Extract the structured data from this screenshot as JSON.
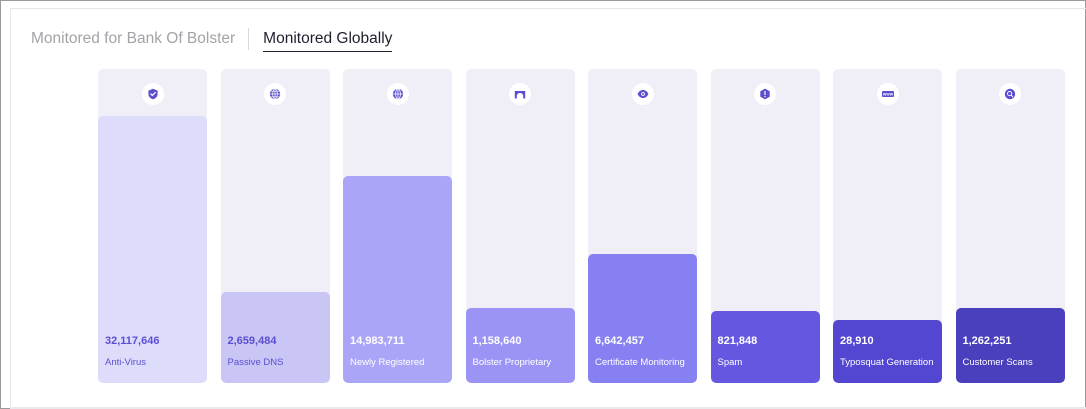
{
  "tabs": [
    {
      "label": "Monitored for Bank Of Bolster",
      "active": false
    },
    {
      "label": "Monitored Globally",
      "active": true
    }
  ],
  "chart_data": {
    "type": "bar",
    "title": "",
    "xlabel": "",
    "ylabel": "",
    "categories": [
      "Anti-Virus",
      "Passive DNS",
      "Newly Registered",
      "Bolster Proprietary",
      "Certificate Monitoring",
      "Spam",
      "Typosquat Generation",
      "Customer Scans"
    ],
    "values": [
      32117646,
      2659484,
      14983711,
      1158640,
      6642457,
      821848,
      28910,
      1262251
    ],
    "value_labels": [
      "32,117,646",
      "2,659,484",
      "14,983,711",
      "1,158,640",
      "6,642,457",
      "821,848",
      "28,910",
      "1,262,251"
    ],
    "bar_fill_fraction": [
      0.85,
      0.29,
      0.66,
      0.24,
      0.41,
      0.23,
      0.2,
      0.24
    ],
    "icons": [
      "shield-check-icon",
      "globe-dns-icon",
      "globe-icon",
      "arch-icon",
      "eye-icon",
      "alert-icon",
      "www-icon",
      "search-icon"
    ],
    "bar_colors": [
      "#dedcfb",
      "#c9c6f6",
      "#aaa5f6",
      "#9b94f4",
      "#8680f3",
      "#6657e0",
      "#5346d1",
      "#4a3fbd"
    ],
    "text_colors": [
      "#5b4fd0",
      "#5b4fd0",
      "#ffffff",
      "#ffffff",
      "#ffffff",
      "#ffffff",
      "#ffffff",
      "#ffffff"
    ],
    "icon_color": "#5b4fd0",
    "track_color": "#f0eff8",
    "grid": false,
    "legend": "none"
  }
}
